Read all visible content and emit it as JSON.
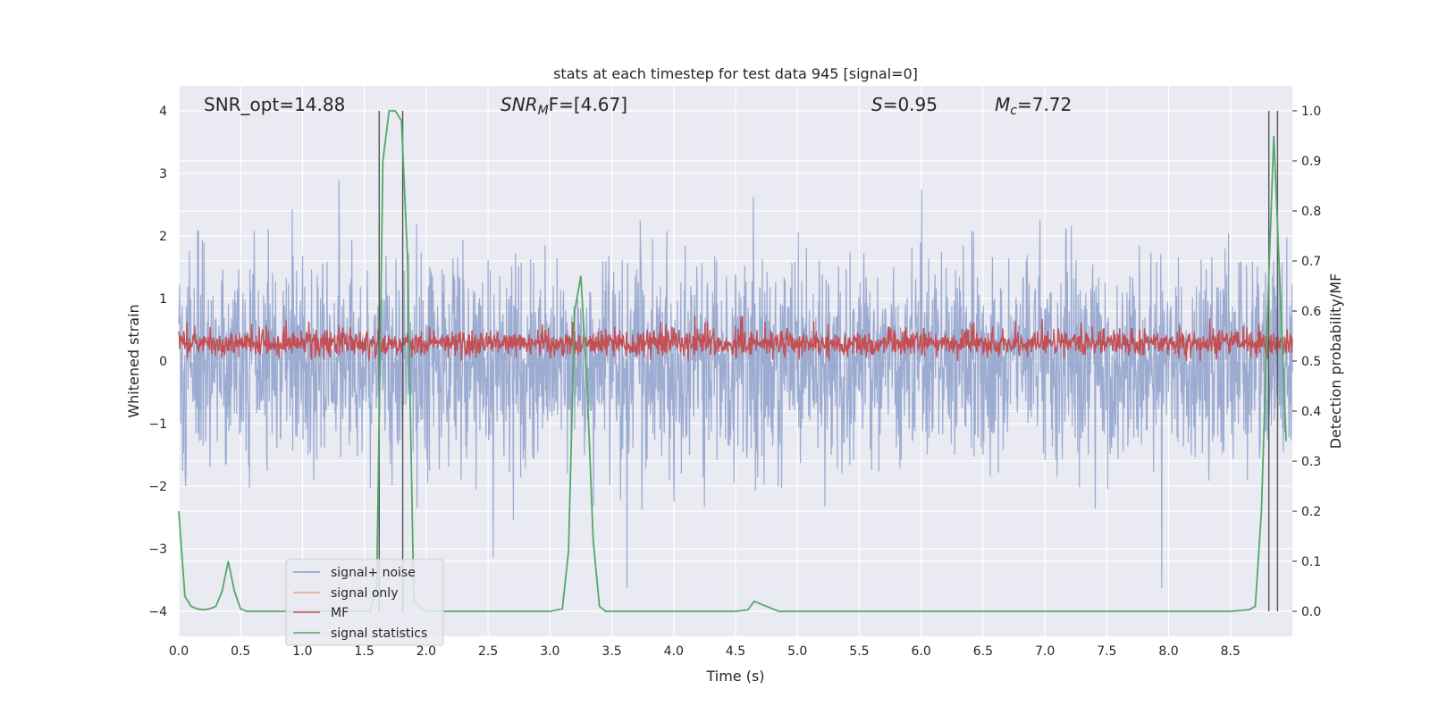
{
  "chart_data": {
    "type": "line",
    "title": "stats at each timestep for test data 945 [signal=0]",
    "xlabel": "Time (s)",
    "ylabel": "Whitened strain",
    "ylabel_right": "Detection probability/MF",
    "xlim": [
      0.0,
      9.0
    ],
    "ylim": [
      -4.4,
      4.4
    ],
    "ylim_right": [
      -0.05,
      1.05
    ],
    "x_ticks": [
      "0.0",
      "0.5",
      "1.0",
      "1.5",
      "2.0",
      "2.5",
      "3.0",
      "3.5",
      "4.0",
      "4.5",
      "5.0",
      "5.5",
      "6.0",
      "6.5",
      "7.0",
      "7.5",
      "8.0",
      "8.5"
    ],
    "y_ticks": [
      "4",
      "3",
      "2",
      "1",
      "0",
      "−1",
      "−2",
      "−3",
      "−4"
    ],
    "y_ticks_right": [
      "1.0",
      "0.9",
      "0.8",
      "0.7",
      "0.6",
      "0.5",
      "0.4",
      "0.3",
      "0.2",
      "0.1",
      "0.0"
    ],
    "grid": true,
    "legend_placement": "lower-left",
    "annotations": {
      "snr_opt": "SNR_opt=14.88",
      "snr_mf_main": "SNR",
      "snr_mf_sub": "M",
      "snr_mf_rest": "F=[4.67]",
      "s_var": "S",
      "s_val": "=0.95",
      "mc_var": "M",
      "mc_sub": "c",
      "mc_val": "=7.72"
    },
    "vertical_lines_x": [
      1.62,
      1.81,
      8.81,
      8.88
    ],
    "series": [
      {
        "name": "signal+ noise",
        "color": "#8da0cb",
        "description_values": "white noise, amplitude ~±2 with spikes to ±4"
      },
      {
        "name": "signal only",
        "color": "#e8a08a",
        "values": []
      },
      {
        "name": "MF",
        "color": "#c44e52"
      },
      {
        "name": "signal statistics",
        "color": "#55a868",
        "x": [
          0.0,
          0.05,
          0.1,
          0.15,
          0.2,
          0.25,
          0.3,
          0.35,
          0.4,
          0.45,
          0.5,
          0.55,
          0.6,
          0.7,
          0.8,
          0.9,
          1.0,
          1.1,
          1.2,
          1.3,
          1.4,
          1.5,
          1.55,
          1.6,
          1.65,
          1.7,
          1.75,
          1.8,
          1.85,
          1.9,
          1.95,
          2.0,
          2.05,
          2.1,
          2.5,
          3.0,
          3.1,
          3.15,
          3.2,
          3.25,
          3.3,
          3.35,
          3.4,
          3.45,
          3.5,
          4.0,
          4.5,
          4.6,
          4.65,
          4.7,
          4.75,
          4.8,
          4.85,
          4.9,
          5.0,
          6.0,
          7.0,
          8.0,
          8.5,
          8.65,
          8.7,
          8.75,
          8.8,
          8.85,
          8.9,
          8.95
        ],
        "values": [
          0.2,
          0.03,
          0.01,
          0.005,
          0.003,
          0.005,
          0.01,
          0.04,
          0.1,
          0.04,
          0.005,
          0.0,
          0.0,
          0.0,
          0.0,
          0.0,
          0.0,
          0.0,
          0.0,
          0.0,
          0.0,
          0.0,
          0.0,
          0.05,
          0.9,
          1.0,
          1.0,
          0.98,
          0.7,
          0.02,
          0.01,
          0.0,
          0.0,
          0.0,
          0.0,
          0.0,
          0.005,
          0.12,
          0.6,
          0.67,
          0.45,
          0.14,
          0.01,
          0.0,
          0.0,
          0.0,
          0.0,
          0.003,
          0.02,
          0.015,
          0.01,
          0.005,
          0.0,
          0.0,
          0.0,
          0.0,
          0.0,
          0.0,
          0.0,
          0.003,
          0.01,
          0.2,
          0.6,
          0.95,
          0.65,
          0.34
        ]
      }
    ]
  }
}
